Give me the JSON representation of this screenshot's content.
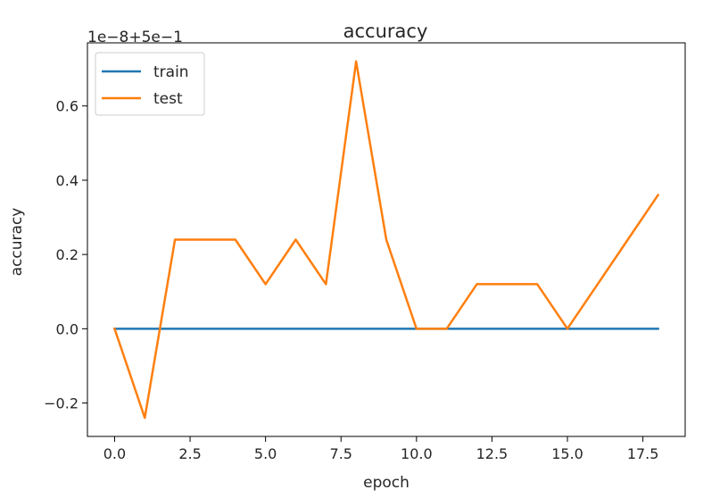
{
  "chart_data": {
    "type": "line",
    "title": "accuracy",
    "xlabel": "epoch",
    "ylabel": "accuracy",
    "offset_text": "1e−8+5e−1",
    "xlim": [
      -0.9,
      18.9
    ],
    "ylim": [
      -0.29,
      0.77
    ],
    "xticks": [
      0.0,
      2.5,
      5.0,
      7.5,
      10.0,
      12.5,
      15.0,
      17.5
    ],
    "xtick_labels": [
      "0.0",
      "2.5",
      "5.0",
      "7.5",
      "10.0",
      "12.5",
      "15.0",
      "17.5"
    ],
    "yticks": [
      -0.2,
      0.0,
      0.2,
      0.4,
      0.6
    ],
    "ytick_labels": [
      "−0.2",
      "0.0",
      "0.2",
      "0.4",
      "0.6"
    ],
    "grid": false,
    "legend_position": "upper-left",
    "series": [
      {
        "name": "train",
        "color": "#1f77b4",
        "x": [
          0,
          1,
          2,
          3,
          4,
          5,
          6,
          7,
          8,
          9,
          10,
          11,
          12,
          13,
          14,
          15,
          16,
          17,
          18
        ],
        "y": [
          0,
          0,
          0,
          0,
          0,
          0,
          0,
          0,
          0,
          0,
          0,
          0,
          0,
          0,
          0,
          0,
          0,
          0,
          0
        ]
      },
      {
        "name": "test",
        "color": "#ff7f0e",
        "x": [
          0,
          1,
          2,
          3,
          4,
          5,
          6,
          7,
          8,
          9,
          10,
          11,
          12,
          13,
          14,
          15,
          16,
          17,
          18
        ],
        "y": [
          0,
          -0.24,
          0.24,
          0.24,
          0.24,
          0.12,
          0.24,
          0.12,
          0.72,
          0.24,
          0,
          0,
          0.12,
          0.12,
          0.12,
          0,
          0.12,
          0.24,
          0.36
        ]
      }
    ]
  }
}
